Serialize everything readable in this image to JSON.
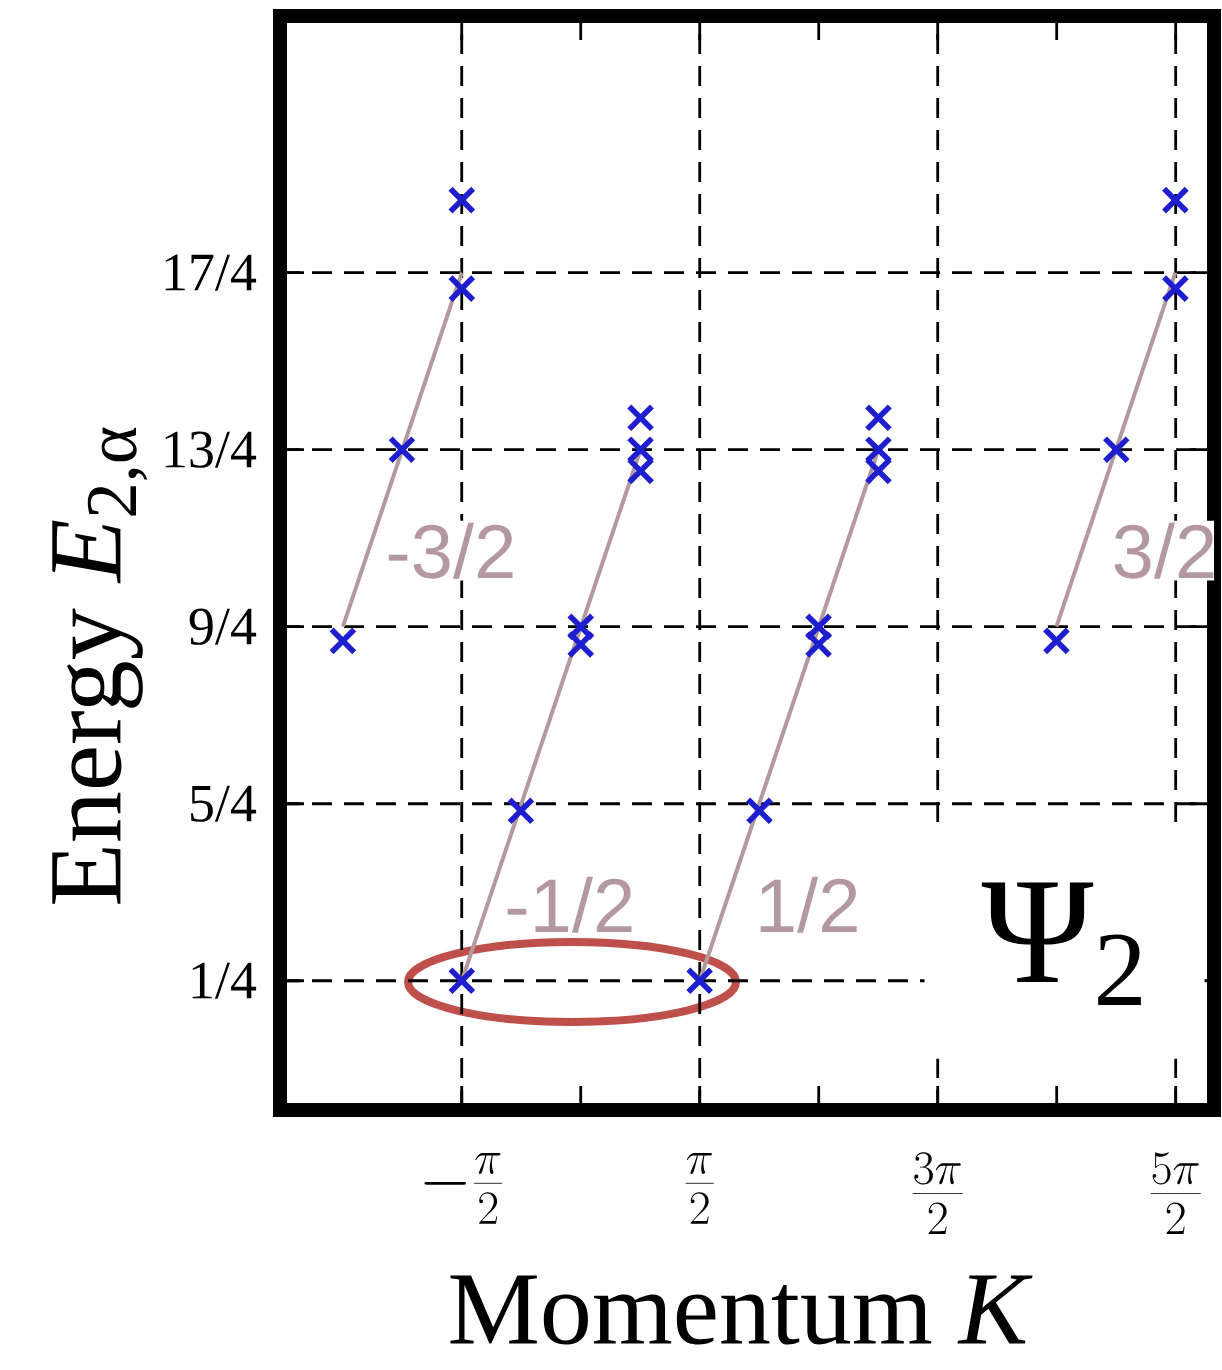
{
  "chart_data": {
    "type": "scatter",
    "xlabel": "Momentum *K*",
    "ylabel": "Energy *E*$_{2,α}$",
    "xlim": [
      -3.97,
      8.36
    ],
    "ylim": [
      -0.48,
      5.7
    ],
    "xticks": [
      {
        "value": -1.5708,
        "label": "-\\frac{\\pi}{2}"
      },
      {
        "value": 0,
        "label": null
      },
      {
        "value": 1.5708,
        "label": "\\frac{\\pi}{2}"
      },
      {
        "value": 3.1416,
        "label": null
      },
      {
        "value": 4.7124,
        "label": "\\frac{3\\pi}{2}"
      },
      {
        "value": 6.2832,
        "label": null
      },
      {
        "value": 7.854,
        "label": "\\frac{5\\pi}{2}"
      }
    ],
    "yticks": [
      {
        "value": 0.25,
        "label": "1/4"
      },
      {
        "value": 1.25,
        "label": "5/4"
      },
      {
        "value": 2.25,
        "label": "9/4"
      },
      {
        "value": 3.25,
        "label": "13/4"
      },
      {
        "value": 4.25,
        "label": "17/4"
      }
    ],
    "grid": true,
    "series": [
      {
        "type": "line",
        "name": "-3/2",
        "color": "#b3999d",
        "x": [
          -3.14,
          -1.57
        ],
        "values": [
          2.25,
          4.25
        ]
      },
      {
        "type": "line",
        "name": "-1/2",
        "color": "#b3999d",
        "x": [
          -1.57,
          0.79
        ],
        "values": [
          0.25,
          3.25
        ]
      },
      {
        "type": "line",
        "name": "1/2",
        "color": "#b3999d",
        "x": [
          1.57,
          3.93
        ],
        "values": [
          0.25,
          3.25
        ]
      },
      {
        "type": "line",
        "name": "3/2",
        "color": "#b3999d",
        "x": [
          6.28,
          7.85
        ],
        "values": [
          2.25,
          4.25
        ]
      },
      {
        "color": "#1e1ecf",
        "marker": "cross",
        "x": [
          -3.14,
          -2.36,
          -1.57,
          -1.57,
          -1.57,
          -0.79,
          0,
          0,
          0.79,
          0.79,
          0.79,
          1.57,
          2.36,
          3.14,
          3.14,
          3.93,
          3.93,
          3.93,
          6.28,
          7.07,
          7.85,
          7.85
        ],
        "values": [
          2.17,
          3.25,
          4.16,
          4.66,
          0.25,
          1.21,
          2.25,
          2.15,
          3.43,
          3.25,
          3.13,
          0.25,
          1.21,
          2.25,
          2.15,
          3.43,
          3.25,
          3.13,
          2.17,
          3.25,
          4.16,
          4.66
        ]
      }
    ],
    "annotations": [
      "Ψ$_{2}$"
    ]
  }
}
